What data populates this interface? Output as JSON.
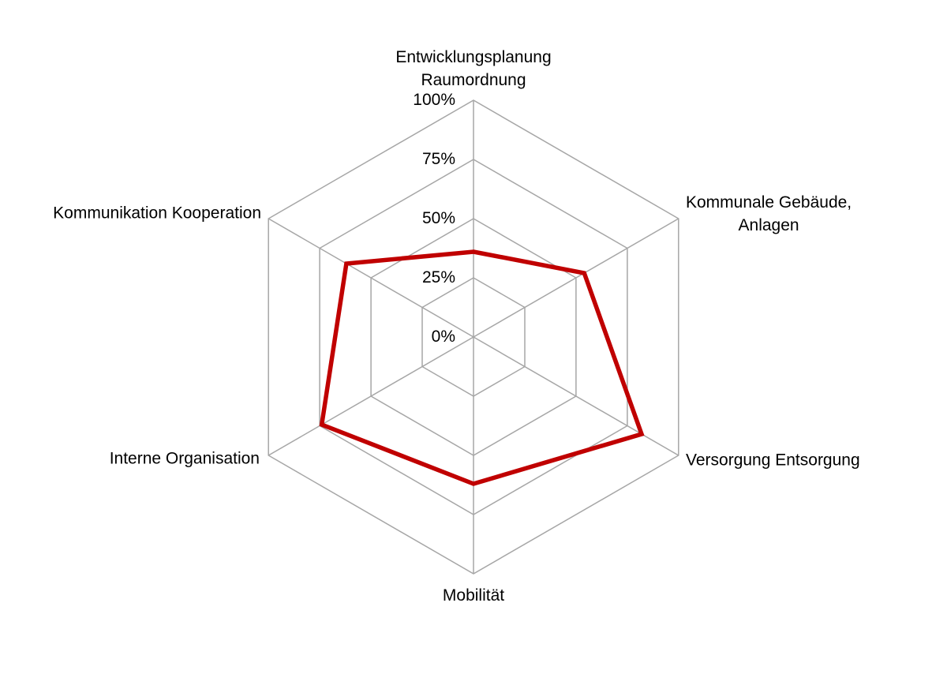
{
  "chart_data": {
    "type": "radar",
    "shape": "hexagon",
    "axes": [
      {
        "label_lines": [
          "Entwicklungsplanung",
          "Raumordnung"
        ]
      },
      {
        "label_lines": [
          "Kommunale Gebäude,",
          "Anlagen"
        ]
      },
      {
        "label_lines": [
          "Versorgung Entsorgung"
        ]
      },
      {
        "label_lines": [
          "Mobilität"
        ]
      },
      {
        "label_lines": [
          "Interne Organisation"
        ]
      },
      {
        "label_lines": [
          "Kommunikation Kooperation"
        ]
      }
    ],
    "series": [
      {
        "values": [
          36,
          54,
          82,
          62,
          74,
          62
        ],
        "color": "#c00000"
      }
    ],
    "tick_labels": [
      "0%",
      "25%",
      "50%",
      "75%",
      "100%"
    ],
    "scale": {
      "min": 0,
      "max": 100,
      "step": 25,
      "unit": "%"
    },
    "grid": {
      "color": "#a6a6a6",
      "ring_count": 4,
      "spoke_count": 6
    },
    "colors": {
      "series_stroke": "#c00000",
      "grid": "#a6a6a6",
      "text": "#000000",
      "background": "#ffffff"
    },
    "legend": null,
    "title": ""
  }
}
